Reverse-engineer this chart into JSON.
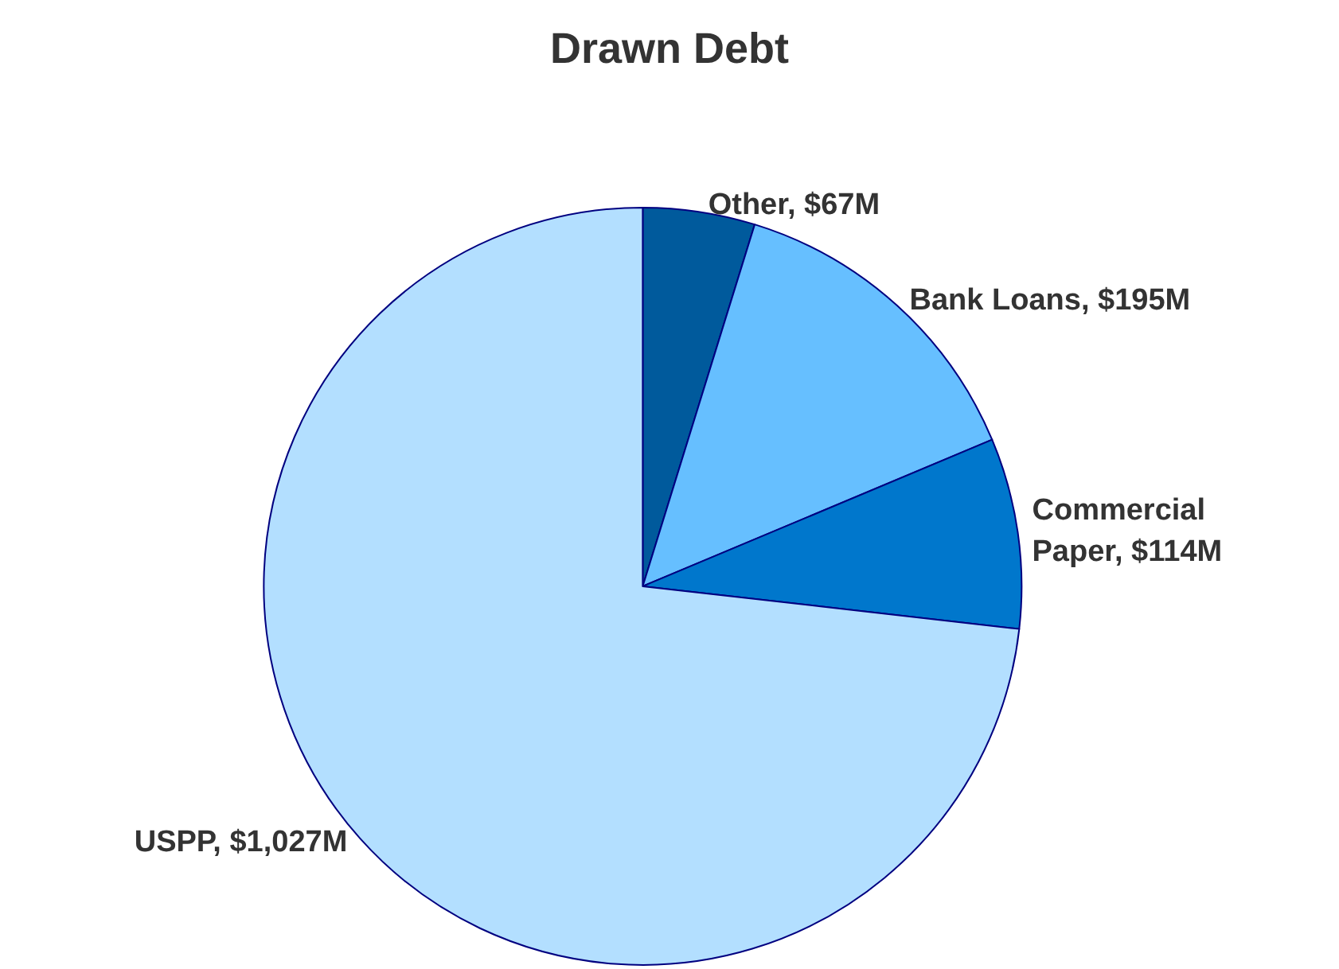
{
  "chart_data": {
    "type": "pie",
    "title": "Drawn Debt",
    "categories": [
      "Other",
      "Bank Loans",
      "Commercial Paper",
      "USPP"
    ],
    "values": [
      67,
      195,
      114,
      1027
    ],
    "value_labels": [
      "$67M",
      "$195M",
      "$114M",
      "$1,027M"
    ],
    "colors": [
      "#005a9c",
      "#66bfff",
      "#0077cc",
      "#b3dfff"
    ],
    "legend": false
  }
}
